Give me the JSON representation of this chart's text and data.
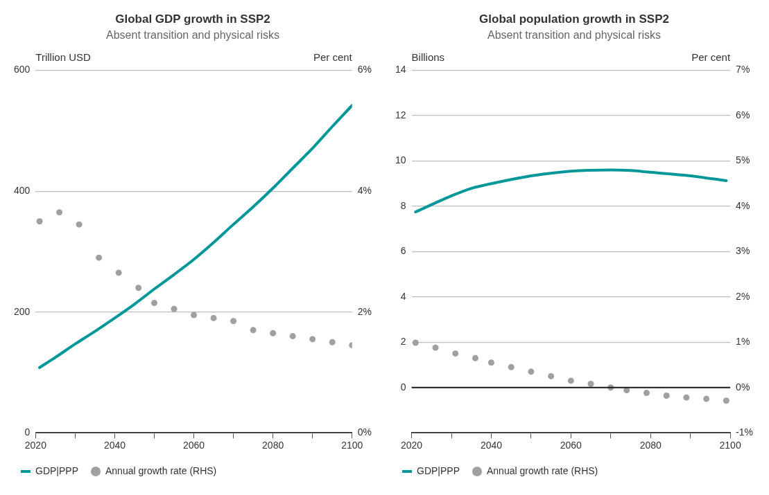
{
  "chart_data": [
    {
      "type": "line",
      "title": "Global GDP growth in SSP2",
      "subtitle": "Absent transition and physical risks",
      "ylabel": "Trillion USD",
      "y2label": "Per cent",
      "xlim": [
        2020,
        2100
      ],
      "xticks": [
        2020,
        {
          "value": 2030,
          "label": null
        },
        2040,
        {
          "value": 2050,
          "label": null
        },
        2060,
        {
          "value": 2070,
          "label": null
        },
        2080,
        {
          "value": 2090,
          "label": null
        },
        2100
      ],
      "ylim": [
        0,
        600
      ],
      "yticks": [
        0,
        200,
        400,
        600
      ],
      "y2lim": [
        0,
        6
      ],
      "y2ticks": [
        {
          "value": 0,
          "label": "0%"
        },
        {
          "value": 2,
          "label": "2%"
        },
        {
          "value": 4,
          "label": "4%"
        },
        {
          "value": 6,
          "label": "6%"
        }
      ],
      "grid": "y",
      "legend": "bottom",
      "series": [
        {
          "name": "GDP|PPP",
          "type": "line",
          "color": "#00979b",
          "marker": "none",
          "x": [
            2021,
            2025,
            2030,
            2035,
            2040,
            2045,
            2050,
            2055,
            2060,
            2065,
            2070,
            2075,
            2080,
            2085,
            2090,
            2095,
            2100
          ],
          "values": [
            108,
            125,
            147,
            168,
            190,
            213,
            238,
            262,
            287,
            315,
            345,
            374,
            405,
            438,
            471,
            507,
            542
          ]
        },
        {
          "name": "Annual growth rate (RHS)",
          "type": "scatter",
          "axis": "y2",
          "color": "#a0a0a0",
          "marker": "circle",
          "x": [
            2021,
            2026,
            2031,
            2036,
            2041,
            2046,
            2050,
            2055,
            2060,
            2065,
            2070,
            2075,
            2080,
            2085,
            2090,
            2095,
            2100
          ],
          "values": [
            3.5,
            3.65,
            3.45,
            2.9,
            2.65,
            2.4,
            2.15,
            2.05,
            1.95,
            1.9,
            1.85,
            1.7,
            1.65,
            1.6,
            1.55,
            1.5,
            1.45
          ]
        }
      ]
    },
    {
      "type": "line",
      "title": "Global population growth in SSP2",
      "subtitle": "Absent transition and physical risks",
      "ylabel": "Billions",
      "y2label": "Per cent",
      "xlim": [
        2020,
        2100
      ],
      "xticks": [
        2020,
        {
          "value": 2030,
          "label": null
        },
        2040,
        {
          "value": 2050,
          "label": null
        },
        2060,
        {
          "value": 2070,
          "label": null
        },
        2080,
        {
          "value": 2090,
          "label": null
        },
        2100
      ],
      "ylim": [
        -2,
        14
      ],
      "yticks": [
        {
          "value": -2,
          "label": null
        },
        0,
        2,
        4,
        6,
        8,
        10,
        12,
        14
      ],
      "y2lim": [
        -1,
        7
      ],
      "y2ticks": [
        {
          "value": -1,
          "label": "-1%"
        },
        {
          "value": 0,
          "label": "0%"
        },
        {
          "value": 1,
          "label": "1%"
        },
        {
          "value": 2,
          "label": "2%"
        },
        {
          "value": 3,
          "label": "3%"
        },
        {
          "value": 4,
          "label": "4%"
        },
        {
          "value": 5,
          "label": "5%"
        },
        {
          "value": 6,
          "label": "6%"
        },
        {
          "value": 7,
          "label": "7%"
        }
      ],
      "grid": "y",
      "legend": "bottom",
      "ref_lines": [
        {
          "axis": "y",
          "value": 0,
          "color": "#1a1a1a"
        }
      ],
      "series": [
        {
          "name": "GDP|PPP",
          "type": "line",
          "color": "#00979b",
          "marker": "none",
          "x": [
            2021,
            2025,
            2030,
            2035,
            2040,
            2050,
            2060,
            2070,
            2075,
            2080,
            2090,
            2099
          ],
          "values": [
            7.75,
            8.07,
            8.46,
            8.79,
            9.0,
            9.34,
            9.55,
            9.6,
            9.58,
            9.5,
            9.34,
            9.13
          ]
        },
        {
          "name": "Annual growth rate (RHS)",
          "type": "scatter",
          "axis": "y2",
          "color": "#a0a0a0",
          "marker": "circle",
          "x": [
            2021,
            2026,
            2031,
            2036,
            2040,
            2045,
            2050,
            2055,
            2060,
            2065,
            2070,
            2074,
            2079,
            2084,
            2089,
            2094,
            2099
          ],
          "values": [
            0.99,
            0.88,
            0.75,
            0.65,
            0.55,
            0.45,
            0.35,
            0.25,
            0.15,
            0.08,
            0.0,
            -0.06,
            -0.12,
            -0.18,
            -0.22,
            -0.25,
            -0.29
          ]
        }
      ]
    }
  ]
}
